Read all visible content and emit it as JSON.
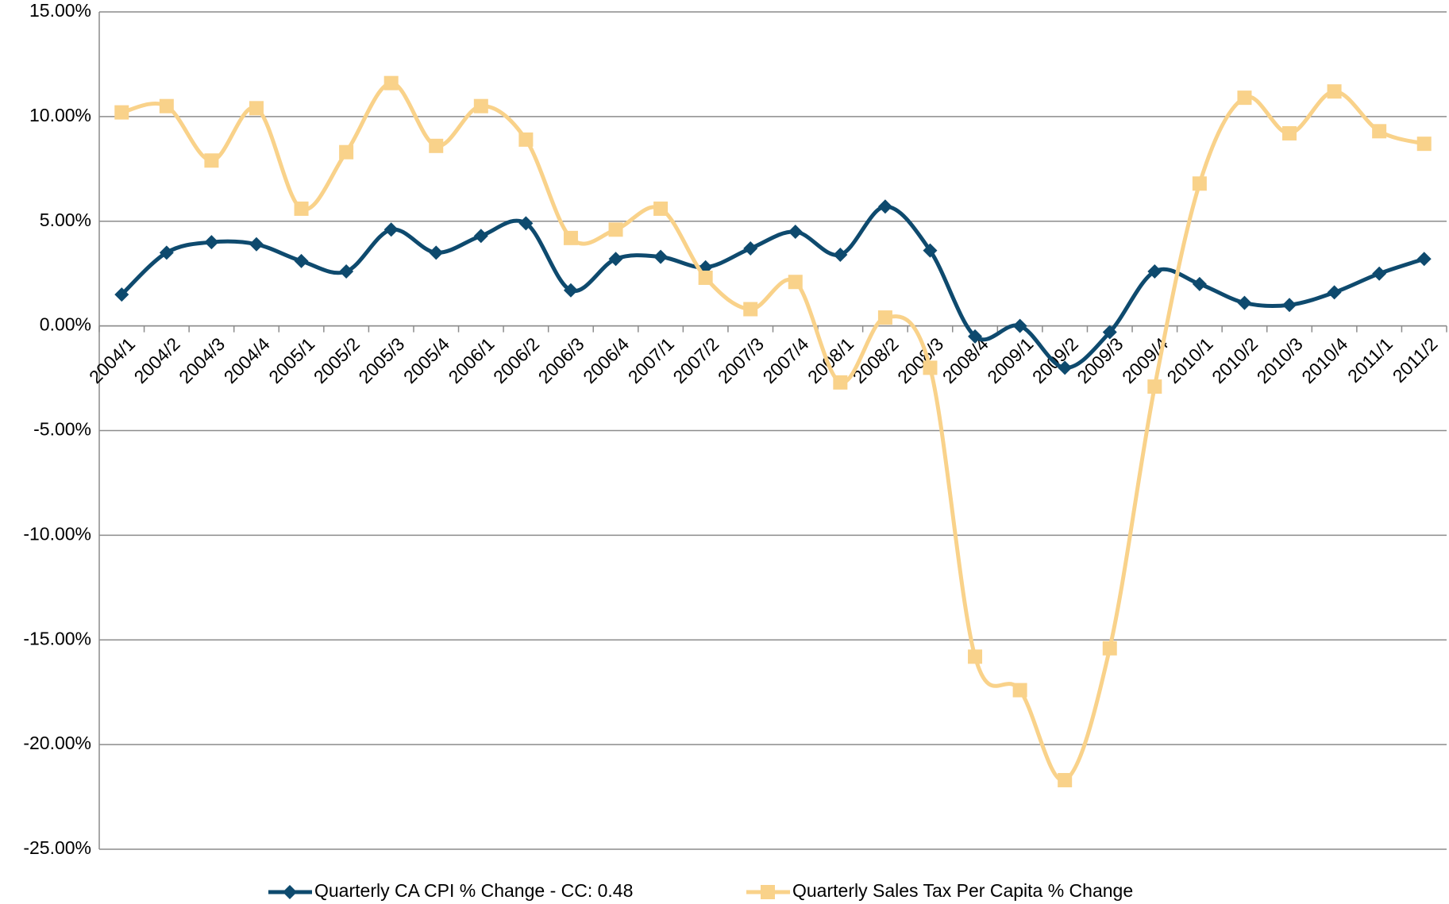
{
  "chart_data": {
    "type": "line",
    "categories": [
      "2004/1",
      "2004/2",
      "2004/3",
      "2004/4",
      "2005/1",
      "2005/2",
      "2005/3",
      "2005/4",
      "2006/1",
      "2006/2",
      "2006/3",
      "2006/4",
      "2007/1",
      "2007/2",
      "2007/3",
      "2007/4",
      "2008/1",
      "2008/2",
      "2008/3",
      "2008/4",
      "2009/1",
      "2009/2",
      "2009/3",
      "2009/4",
      "2010/1",
      "2010/2",
      "2010/3",
      "2010/4",
      "2011/1",
      "2011/2"
    ],
    "series": [
      {
        "name": "Quarterly CA CPI % Change - CC: 0.48",
        "color": "#0e4a6e",
        "marker": "diamond",
        "values": [
          1.5,
          3.5,
          4.0,
          3.9,
          3.1,
          2.6,
          4.6,
          3.5,
          4.3,
          4.9,
          1.7,
          3.2,
          3.3,
          2.8,
          3.7,
          4.5,
          3.4,
          5.7,
          3.6,
          -0.5,
          0.0,
          -2.0,
          -0.3,
          2.6,
          2.0,
          1.1,
          1.0,
          1.6,
          2.5,
          3.2
        ]
      },
      {
        "name": "Quarterly Sales Tax Per Capita % Change",
        "color": "#f9d28a",
        "marker": "square",
        "values": [
          10.2,
          10.5,
          7.9,
          10.4,
          5.6,
          8.3,
          11.6,
          8.6,
          10.5,
          8.9,
          4.2,
          4.6,
          5.6,
          2.3,
          0.8,
          2.1,
          -2.7,
          0.4,
          -2.0,
          -15.8,
          -17.4,
          -21.7,
          -15.4,
          -2.9,
          6.8,
          10.9,
          9.2,
          11.2,
          9.3,
          8.7
        ]
      }
    ],
    "ylim": [
      -25,
      15
    ],
    "yticks": [
      {
        "value": -25,
        "label": "-25.00%"
      },
      {
        "value": -20,
        "label": "-20.00%"
      },
      {
        "value": -15,
        "label": "-15.00%"
      },
      {
        "value": -10,
        "label": "-10.00%"
      },
      {
        "value": -5,
        "label": "-5.00%"
      },
      {
        "value": 0,
        "label": "0.00%"
      },
      {
        "value": 5,
        "label": "5.00%"
      },
      {
        "value": 10,
        "label": "10.00%"
      },
      {
        "value": 15,
        "label": "15.00%"
      }
    ],
    "grid": true,
    "smooth": true,
    "legend": "bottom"
  }
}
